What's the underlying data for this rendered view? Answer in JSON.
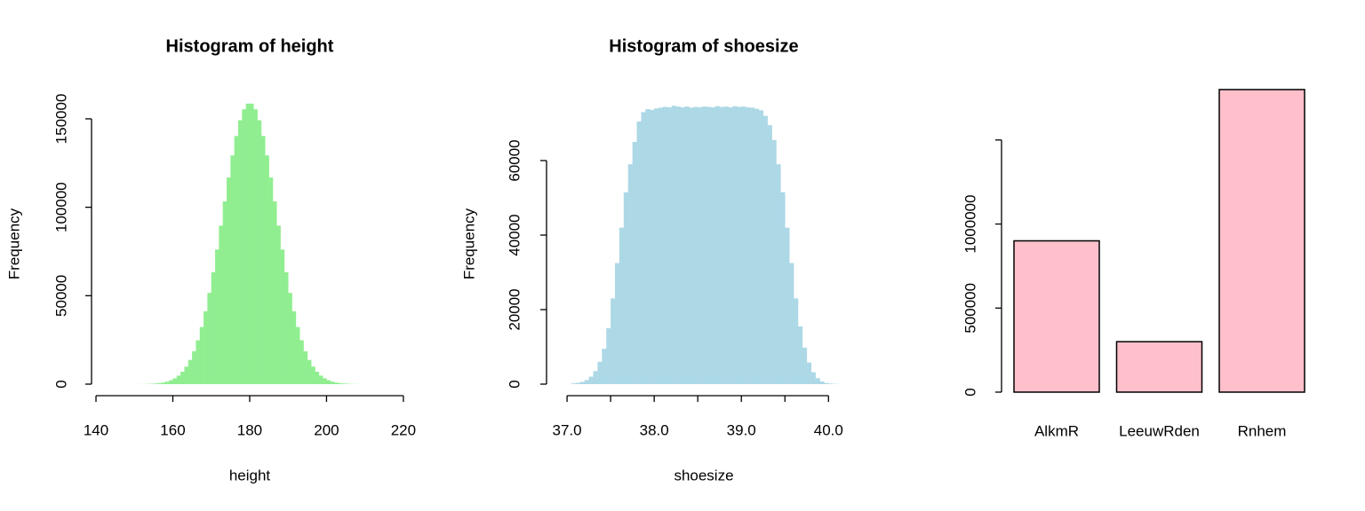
{
  "chart_data": [
    {
      "type": "histogram",
      "title": "Histogram of height",
      "x_label": "height",
      "y_label": "Frequency",
      "color": "#90ee90",
      "bins": [
        148,
        149,
        150,
        151,
        152,
        153,
        154,
        155,
        156,
        157,
        158,
        159,
        160,
        161,
        162,
        163,
        164,
        165,
        166,
        167,
        168,
        169,
        170,
        171,
        172,
        173,
        174,
        175,
        176,
        177,
        178,
        179,
        180,
        181,
        182,
        183,
        184,
        185,
        186,
        187,
        188,
        189,
        190,
        191,
        192,
        193,
        194,
        195,
        196,
        197,
        198,
        199,
        200,
        201,
        202,
        203,
        204,
        205,
        206,
        207,
        208,
        209,
        210,
        211
      ],
      "values": [
        6,
        12,
        22,
        40,
        70,
        120,
        210,
        350,
        570,
        900,
        1400,
        2200,
        3300,
        4800,
        7000,
        9900,
        13700,
        18600,
        24800,
        32300,
        41200,
        51600,
        63300,
        76100,
        89600,
        103300,
        116800,
        129300,
        140300,
        149200,
        155400,
        158600,
        158600,
        155400,
        149200,
        140300,
        129300,
        116800,
        103300,
        89600,
        76100,
        63300,
        51600,
        41200,
        32300,
        24800,
        18600,
        13700,
        9900,
        7000,
        4800,
        3300,
        2200,
        1400,
        900,
        570,
        350,
        210,
        120,
        70,
        40,
        22,
        12
      ],
      "xlim": [
        148,
        211
      ],
      "xticks": [
        140,
        160,
        180,
        200,
        220
      ],
      "ylim": [
        0,
        160000
      ],
      "yticks": [
        0,
        50000,
        100000,
        150000
      ]
    },
    {
      "type": "histogram",
      "title": "Histogram of shoesize",
      "x_label": "shoesize",
      "y_label": "Frequency",
      "color": "#add8e6",
      "bins": [
        37.05,
        37.1,
        37.15,
        37.2,
        37.25,
        37.3,
        37.35,
        37.4,
        37.45,
        37.5,
        37.55,
        37.6,
        37.65,
        37.7,
        37.75,
        37.8,
        37.85,
        37.9,
        37.95,
        38,
        38.05,
        38.1,
        38.15,
        38.2,
        38.25,
        38.3,
        38.35,
        38.4,
        38.45,
        38.5,
        38.55,
        38.6,
        38.65,
        38.7,
        38.75,
        38.8,
        38.85,
        38.9,
        38.95,
        39,
        39.05,
        39.1,
        39.15,
        39.2,
        39.25,
        39.3,
        39.35,
        39.4,
        39.45,
        39.5,
        39.55,
        39.6,
        39.65,
        39.7,
        39.75,
        39.8,
        39.85,
        39.9,
        39.95,
        40,
        40.05,
        40.1,
        40.15
      ],
      "values": [
        200,
        350,
        600,
        1100,
        2000,
        3500,
        6000,
        9500,
        15000,
        23000,
        32500,
        42000,
        51500,
        59000,
        65000,
        70500,
        73000,
        73800,
        73600,
        74000,
        74200,
        74400,
        74300,
        74700,
        74500,
        74300,
        74500,
        74200,
        74400,
        74300,
        74500,
        74400,
        74300,
        74600,
        74400,
        74500,
        74300,
        74600,
        74400,
        74500,
        74300,
        74200,
        73900,
        73500,
        72000,
        69500,
        65500,
        59000,
        51500,
        42000,
        32500,
        23000,
        15500,
        9800,
        5800,
        3200,
        1600,
        700,
        300,
        150,
        70,
        30
      ],
      "xlim": [
        37.05,
        40.15
      ],
      "xticks": [
        {
          "value": 37,
          "label": "37.0"
        },
        {
          "value": 37.5,
          "label": null
        },
        {
          "value": 38,
          "label": "38.0"
        },
        {
          "value": 38.5,
          "label": null
        },
        {
          "value": 39,
          "label": "39.0"
        },
        {
          "value": 39.5,
          "label": null
        },
        {
          "value": 40,
          "label": "40.0"
        }
      ],
      "ylim": [
        0,
        76000
      ],
      "yticks": [
        0,
        20000,
        40000,
        60000
      ]
    },
    {
      "type": "bar",
      "categories": [
        "AlkmR",
        "LeeuwRden",
        "Rnhem"
      ],
      "values": [
        900000,
        300000,
        1800000
      ],
      "color": "#ffc0cb",
      "ylim": [
        0,
        1900000
      ],
      "yticks": [
        0,
        500000,
        1000000,
        {
          "value": 1500000,
          "label": null
        }
      ]
    }
  ]
}
